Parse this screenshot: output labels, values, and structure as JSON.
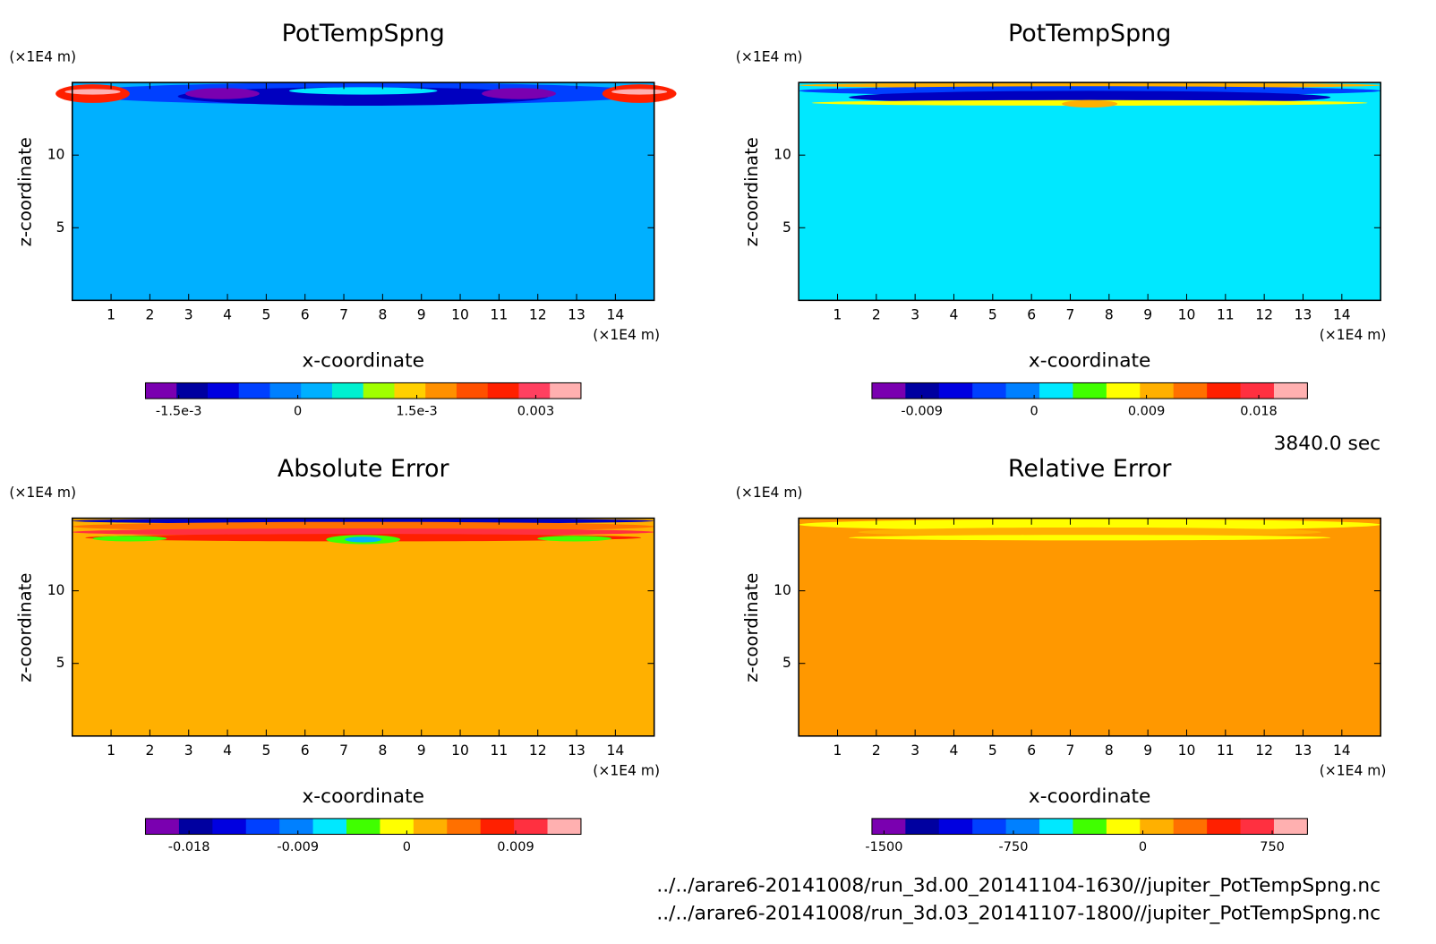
{
  "chart_data": [
    {
      "type": "contour",
      "title": "PotTempSpng",
      "xlabel": "x-coordinate",
      "ylabel": "z-coordinate",
      "x_unit": "(×1E4 m)",
      "y_unit": "(×1E4 m)",
      "xlim": [
        0,
        15
      ],
      "ylim": [
        0,
        15
      ],
      "xticks": [
        1,
        2,
        3,
        4,
        5,
        6,
        7,
        8,
        9,
        10,
        11,
        12,
        13,
        14
      ],
      "yticks": [
        5,
        10
      ],
      "background_color": "#00b0ff",
      "colorbar": {
        "lim": [
          -0.00192,
          0.00357
        ],
        "ticks": [
          {
            "value": -0.0015,
            "label": "-1.5e-3"
          },
          0,
          {
            "value": 0.0015,
            "label": "1.5e-3"
          },
          0.003
        ],
        "colors": [
          "#7a00b0",
          "#0000a0",
          "#0000e0",
          "#0040ff",
          "#0080ff",
          "#00b0ff",
          "#00f0d0",
          "#a0ff00",
          "#ffd000",
          "#ff9000",
          "#ff5000",
          "#ff2000",
          "#ff4060",
          "#ffb0b0"
        ]
      }
    },
    {
      "type": "contour",
      "title": "PotTempSpng",
      "xlabel": "x-coordinate",
      "ylabel": "z-coordinate",
      "x_unit": "(×1E4 m)",
      "y_unit": "(×1E4 m)",
      "xlim": [
        0,
        15
      ],
      "ylim": [
        0,
        15
      ],
      "xticks": [
        1,
        2,
        3,
        4,
        5,
        6,
        7,
        8,
        9,
        10,
        11,
        12,
        13,
        14
      ],
      "yticks": [
        5,
        10
      ],
      "background_color": "#00e8ff",
      "colorbar": {
        "lim": [
          -0.013,
          0.0219
        ],
        "ticks": [
          -0.009,
          0,
          0.009,
          0.018
        ],
        "colors": [
          "#7a00b0",
          "#0000a0",
          "#0000e0",
          "#0040ff",
          "#0080ff",
          "#00e8ff",
          "#40ff00",
          "#ffff00",
          "#ffb000",
          "#ff7000",
          "#ff2000",
          "#ff3040",
          "#ffb0b0"
        ]
      }
    },
    {
      "type": "contour",
      "title": "Absolute Error",
      "xlabel": "x-coordinate",
      "ylabel": "z-coordinate",
      "x_unit": "(×1E4 m)",
      "y_unit": "(×1E4 m)",
      "xlim": [
        0,
        15
      ],
      "ylim": [
        0,
        15
      ],
      "xticks": [
        1,
        2,
        3,
        4,
        5,
        6,
        7,
        8,
        9,
        10,
        11,
        12,
        13,
        14
      ],
      "yticks": [
        5,
        10
      ],
      "background_color": "#ffb000",
      "colorbar": {
        "lim": [
          -0.0216,
          0.0144
        ],
        "ticks": [
          -0.018,
          -0.009,
          0,
          0.009
        ],
        "colors": [
          "#7a00b0",
          "#0000a0",
          "#0000e0",
          "#0040ff",
          "#0080ff",
          "#00e8ff",
          "#40ff00",
          "#ffff00",
          "#ffb000",
          "#ff7000",
          "#ff2000",
          "#ff3040",
          "#ffb0b0"
        ]
      }
    },
    {
      "type": "contour",
      "title": "Relative Error",
      "xlabel": "x-coordinate",
      "ylabel": "z-coordinate",
      "x_unit": "(×1E4 m)",
      "y_unit": "(×1E4 m)",
      "xlim": [
        0,
        15
      ],
      "ylim": [
        0,
        15
      ],
      "xticks": [
        1,
        2,
        3,
        4,
        5,
        6,
        7,
        8,
        9,
        10,
        11,
        12,
        13,
        14
      ],
      "yticks": [
        5,
        10
      ],
      "background_color": "#ff9800",
      "colorbar": {
        "lim": [
          -1570,
          954
        ],
        "ticks": [
          -1500,
          -750,
          0,
          750
        ],
        "colors": [
          "#7a00b0",
          "#0000a0",
          "#0000e0",
          "#0040ff",
          "#0080ff",
          "#00e8ff",
          "#40ff00",
          "#ffff00",
          "#ffb000",
          "#ff7000",
          "#ff2000",
          "#ff3040",
          "#ffb0b0"
        ]
      }
    }
  ],
  "time": "3840.0 sec",
  "files": [
    "../../arare6-20141008/run_3d.00_20141104-1630//jupiter_PotTempSpng.nc",
    "../../arare6-20141008/run_3d.03_20141107-1800//jupiter_PotTempSpng.nc"
  ]
}
